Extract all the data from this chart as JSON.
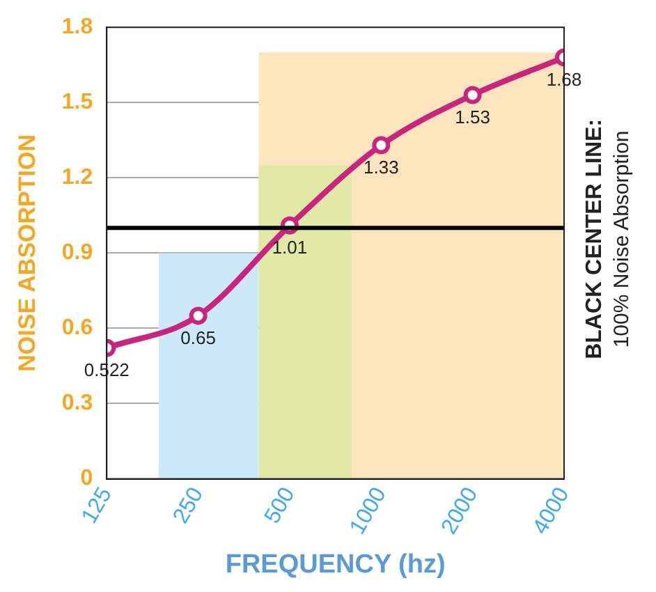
{
  "chart_data": {
    "type": "line",
    "xlabel": "FREQUENCY (hz)",
    "ylabel": "NOISE ABSORPTION",
    "log": "x",
    "xlim": [
      125,
      4000
    ],
    "xticks": [
      125,
      250,
      500,
      1000,
      2000,
      4000
    ],
    "ylim": [
      0,
      1.8
    ],
    "yticks": [
      0,
      0.3,
      0.6,
      0.9,
      1.2,
      1.5,
      1.8
    ],
    "grid": "y",
    "ref_lines": [
      {
        "axis": "y",
        "value": 1,
        "color": "#000000"
      }
    ],
    "annotations": [
      "BLACK CENTER LINE:",
      "100% Noise Absorption"
    ],
    "series": [
      {
        "type": "area",
        "color": "#fce4bd",
        "x": [
          395,
          4000
        ],
        "values": [
          1.7,
          1.7
        ]
      },
      {
        "type": "area",
        "color": "#e0eaa6",
        "x": [
          395,
          800
        ],
        "values": [
          1.25,
          1.25
        ]
      },
      {
        "type": "area",
        "color": "#cce9f9",
        "x": [
          185,
          395
        ],
        "values": [
          0.9,
          0.9
        ]
      },
      {
        "type": "line",
        "color": "#c9247e",
        "marker": "circle",
        "x": [
          125,
          250,
          500,
          1000,
          2000,
          4000
        ],
        "values": [
          0.522,
          0.65,
          1.01,
          1.33,
          1.53,
          1.68
        ],
        "value_labels": [
          "0.522",
          "0.65",
          "1.01",
          "1.33",
          "1.53",
          "1.68"
        ]
      }
    ]
  }
}
